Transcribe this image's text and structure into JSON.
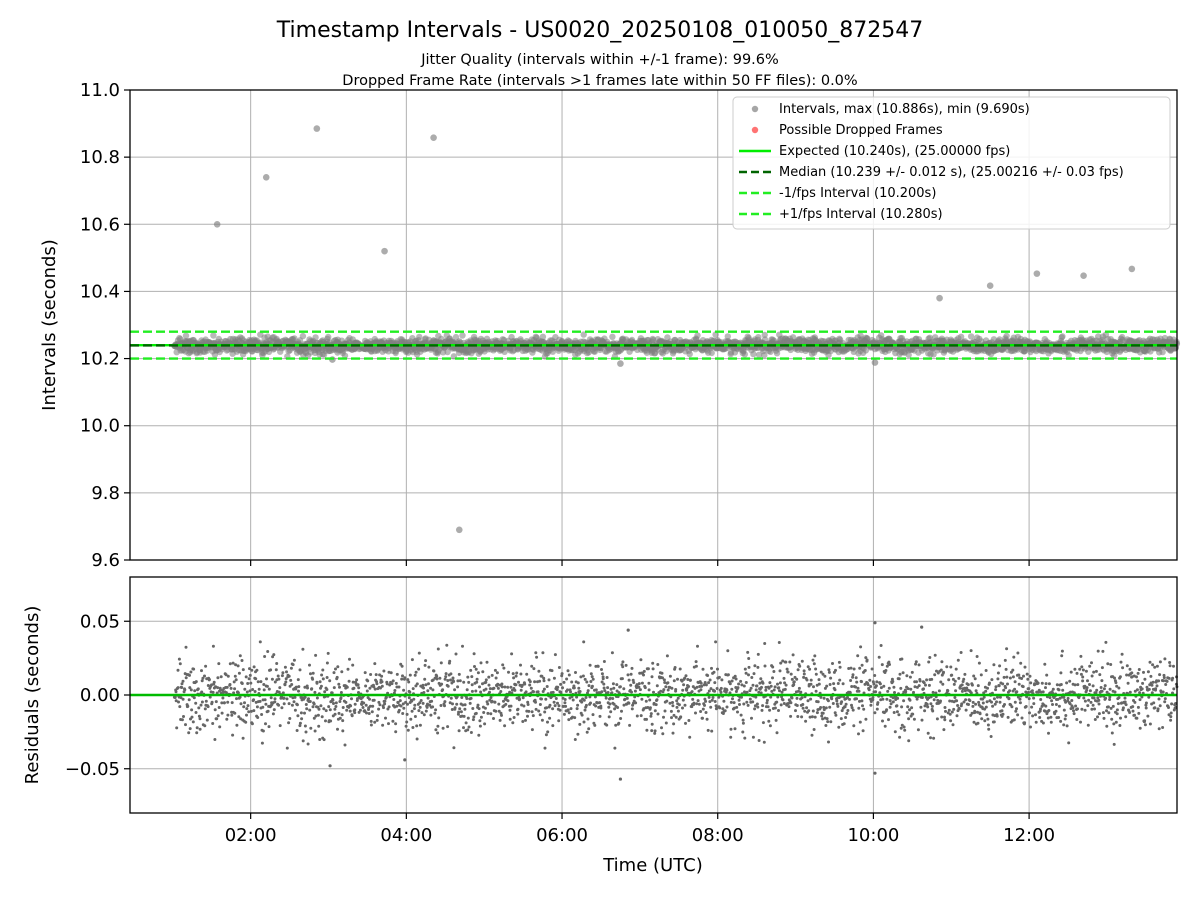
{
  "chart_data": [
    {
      "type": "scatter",
      "title": "Timestamp Intervals - US0020_20250108_010050_872547",
      "subtitle_lines": [
        "Jitter Quality (intervals within +/-1 frame): 99.6%",
        "Dropped Frame Rate (intervals >1 frames late within 50 FF files): 0.0%"
      ],
      "ylabel": "Intervals (seconds)",
      "ylim": [
        9.6,
        11.0
      ],
      "yticks": [
        "11.0",
        "10.8",
        "10.6",
        "10.4",
        "10.2",
        "10.0",
        "9.8",
        "9.6"
      ],
      "xlim_hours": [
        0.45,
        13.9
      ],
      "grid": true,
      "legend_position": "top-right",
      "legend": [
        "Intervals, max (10.886s), min (9.690s)",
        "Possible Dropped Frames",
        "Expected (10.240s), (25.00000 fps)",
        "Median (10.239 +/- 0.012 s), (25.00216 +/- 0.03 fps)",
        "-1/fps Interval (10.200s)",
        "+1/fps Interval (10.280s)"
      ],
      "reference_lines": {
        "expected": 10.24,
        "median": 10.239,
        "minus_one_fps": 10.2,
        "plus_one_fps": 10.28
      },
      "data_x_range_hours": [
        1.02,
        13.9
      ],
      "dense_band": {
        "center": 10.239,
        "spread": 0.012
      },
      "series": [
        {
          "name": "Intervals, max (10.886s), min (9.690s)",
          "outliers": [
            {
              "x": 1.57,
              "y": 10.6
            },
            {
              "x": 2.2,
              "y": 10.74
            },
            {
              "x": 2.85,
              "y": 10.885
            },
            {
              "x": 3.72,
              "y": 10.52
            },
            {
              "x": 4.35,
              "y": 10.858
            },
            {
              "x": 4.68,
              "y": 9.69
            },
            {
              "x": 10.85,
              "y": 10.38
            },
            {
              "x": 11.5,
              "y": 10.417
            },
            {
              "x": 12.1,
              "y": 10.453
            },
            {
              "x": 12.7,
              "y": 10.447
            },
            {
              "x": 13.32,
              "y": 10.467
            },
            {
              "x": 6.75,
              "y": 10.185
            },
            {
              "x": 10.02,
              "y": 10.188
            },
            {
              "x": 3.05,
              "y": 10.197
            }
          ]
        },
        {
          "name": "Possible Dropped Frames",
          "outliers": []
        }
      ],
      "colors": {
        "intervals": "#808080",
        "dropped": "#ff4444",
        "expected": "#00ee00",
        "median": "#006400",
        "fps_bounds": "#22ee22"
      }
    },
    {
      "type": "scatter",
      "xlabel": "Time (UTC)",
      "ylabel": "Residuals (seconds)",
      "ylim": [
        -0.08,
        0.08
      ],
      "yticks": [
        "0.05",
        "0.00",
        "−0.05"
      ],
      "xticks": [
        "02:00",
        "04:00",
        "06:00",
        "08:00",
        "10:00",
        "12:00"
      ],
      "xlim_hours": [
        0.45,
        13.9
      ],
      "grid": true,
      "zero_line": 0,
      "residual_spread": 0.012,
      "outliers": [
        {
          "x": 3.02,
          "y": -0.048
        },
        {
          "x": 3.98,
          "y": -0.044
        },
        {
          "x": 6.75,
          "y": -0.057
        },
        {
          "x": 10.02,
          "y": -0.053
        },
        {
          "x": 10.02,
          "y": 0.049
        },
        {
          "x": 10.62,
          "y": 0.046
        },
        {
          "x": 6.85,
          "y": 0.044
        }
      ],
      "colors": {
        "points": "#666666",
        "zero_line": "#00bb00"
      }
    }
  ]
}
